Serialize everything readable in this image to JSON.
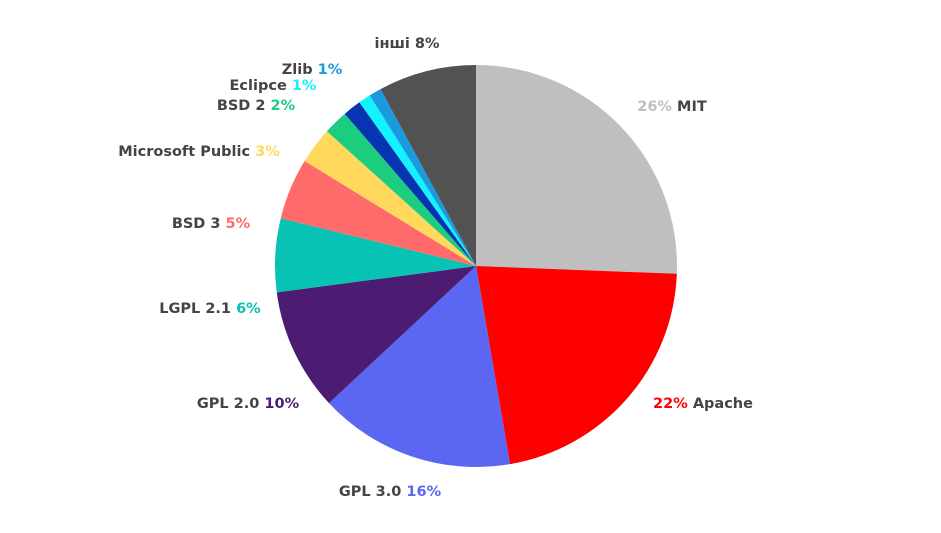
{
  "chart_data": {
    "type": "pie",
    "title": "",
    "slices": [
      {
        "name": "MIT",
        "value_label": "26%",
        "value": 26,
        "color": "#bfbfbf",
        "value_color": "#bfbfbf",
        "label_order": "value-first"
      },
      {
        "name": "Apache",
        "value_label": "22%",
        "value": 22,
        "color": "#fe0000",
        "value_color": "#fe0000",
        "label_order": "value-first"
      },
      {
        "name": "GPL 3.0",
        "value_label": "16%",
        "value": 16,
        "color": "#5b67f2",
        "value_color": "#5b67f2",
        "label_order": "name-first"
      },
      {
        "name": "GPL 2.0",
        "value_label": "10%",
        "value": 10,
        "color": "#4c1c73",
        "value_color": "#4c1c73",
        "label_order": "name-first"
      },
      {
        "name": "LGPL 2.1",
        "value_label": "6%",
        "value": 6,
        "color": "#08c2b3",
        "value_color": "#08c2b3",
        "label_order": "name-first"
      },
      {
        "name": "BSD 3",
        "value_label": "5%",
        "value": 5,
        "color": "#ff6b6b",
        "value_color": "#ff6b6b",
        "label_order": "name-first"
      },
      {
        "name": "Microsoft Public",
        "value_label": "3%",
        "value": 3,
        "color": "#ffd85c",
        "value_color": "#ffd85c",
        "label_order": "name-first"
      },
      {
        "name": "BSD 2",
        "value_label": "2%",
        "value": 2,
        "color": "#1ccd80",
        "value_color": "#1ccd80",
        "label_order": "name-first"
      },
      {
        "name": "",
        "value_label": "",
        "value": 1.5,
        "color": "#0735b2",
        "value_color": "#0735b2",
        "label_order": "name-first"
      },
      {
        "name": "Eclipce",
        "value_label": "1%",
        "value": 1,
        "color": "#14f1ff",
        "value_color": "#14f1ff",
        "label_order": "name-first"
      },
      {
        "name": "Zlib",
        "value_label": "1%",
        "value": 1,
        "color": "#1a9be0",
        "value_color": "#1a9be0",
        "label_order": "name-first"
      },
      {
        "name": "інші",
        "value_label": "8%",
        "value": 8,
        "color": "#525252",
        "value_color": "#444444",
        "label_order": "name-first"
      }
    ]
  }
}
